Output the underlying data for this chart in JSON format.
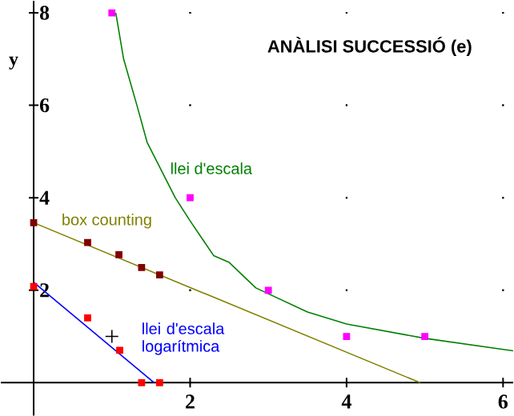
{
  "chart_data": {
    "type": "line",
    "title": "ANÀLISI SUCCESSIÓ (e)",
    "ylabel": "y",
    "xlim": [
      -0.42,
      6.13
    ],
    "ylim": [
      -0.71,
      8.26
    ],
    "xticks": [
      2,
      4,
      6
    ],
    "yticks": [
      2,
      4,
      6,
      8
    ],
    "grid": true,
    "series": [
      {
        "type": "scatter",
        "marker": "square",
        "color": "#ff00ff",
        "x": [
          1,
          2,
          3,
          4,
          5
        ],
        "values": [
          8,
          4,
          2,
          1,
          1
        ]
      },
      {
        "name": "llei d'escala",
        "color": "#008000",
        "x": [
          1.05,
          1.15,
          1.32,
          1.45,
          1.81,
          2.0,
          2.3,
          2.5,
          2.84,
          3.5,
          4,
          5,
          6,
          6.13
        ],
        "values": [
          8,
          7,
          6,
          5.2,
          4,
          3.5,
          2.75,
          2.6,
          2.05,
          1.53,
          1.27,
          0.96,
          0.72,
          0.69
        ]
      },
      {
        "name": "box counting",
        "color": "#808000",
        "x": [
          0,
          4.94
        ],
        "values": [
          3.46,
          0
        ]
      },
      {
        "type": "scatter",
        "marker": "square",
        "color": "#800000",
        "x": [
          0,
          0.69,
          1.09,
          1.38,
          1.61
        ],
        "values": [
          3.46,
          3.03,
          2.77,
          2.49,
          2.33
        ]
      },
      {
        "name": "llei d'escala logarítmica",
        "color": "#0000ff",
        "x": [
          0,
          1.54
        ],
        "values": [
          2.17,
          0
        ]
      },
      {
        "type": "scatter",
        "marker": "square",
        "color": "#ff0000",
        "x": [
          0,
          0.69,
          1.1,
          1.38,
          1.61
        ],
        "values": [
          2.08,
          1.4,
          0.7,
          0,
          0
        ]
      },
      {
        "type": "scatter",
        "marker": "cross",
        "color": "#000000",
        "x": [
          1.0
        ],
        "values": [
          1.0
        ]
      }
    ]
  }
}
